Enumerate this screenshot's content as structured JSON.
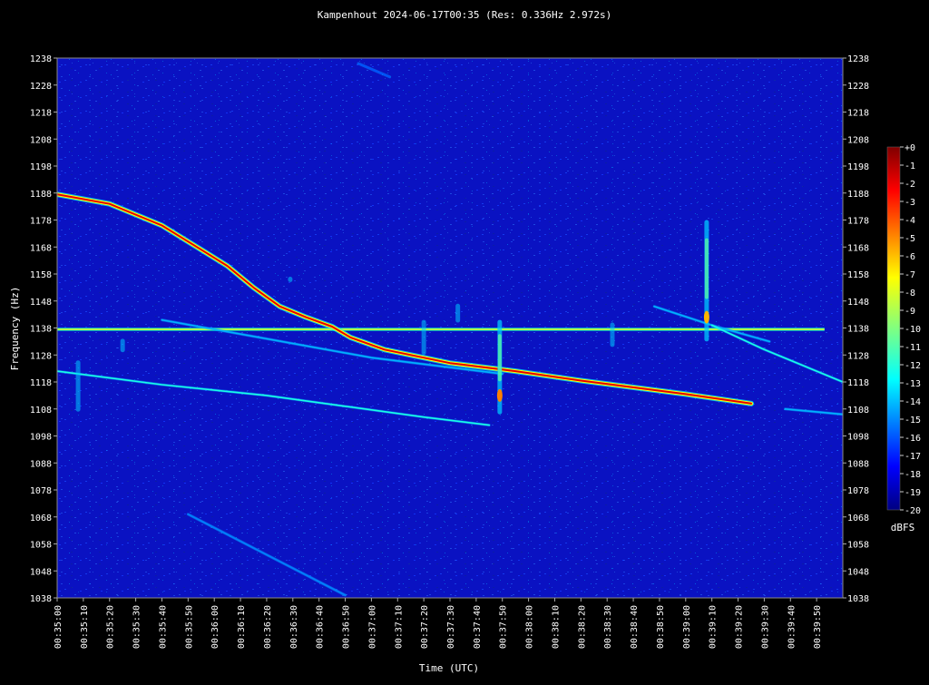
{
  "chart_data": {
    "type": "heatmap",
    "title": "Kampenhout 2024-06-17T00:35 (Res: 0.336Hz 2.972s)",
    "xlabel": "Time (UTC)",
    "ylabel": "Frequency (Hz)",
    "x_range_seconds_after_0035": [
      0,
      300
    ],
    "ylim": [
      1038,
      1238
    ],
    "x_ticks": [
      "00:35:00",
      "00:35:10",
      "00:35:20",
      "00:35:30",
      "00:35:40",
      "00:35:50",
      "00:36:00",
      "00:36:10",
      "00:36:20",
      "00:36:30",
      "00:36:40",
      "00:36:50",
      "00:37:00",
      "00:37:10",
      "00:37:20",
      "00:37:30",
      "00:37:40",
      "00:37:50",
      "00:38:00",
      "00:38:10",
      "00:38:20",
      "00:38:30",
      "00:38:40",
      "00:38:50",
      "00:39:00",
      "00:39:10",
      "00:39:20",
      "00:39:30",
      "00:39:40",
      "00:39:50"
    ],
    "y_ticks": [
      1038,
      1048,
      1058,
      1068,
      1078,
      1088,
      1098,
      1108,
      1118,
      1128,
      1138,
      1148,
      1158,
      1168,
      1178,
      1188,
      1198,
      1208,
      1218,
      1228,
      1238
    ],
    "colorbar": {
      "label": "dBFS",
      "min": -20,
      "max": 0,
      "ticks": [
        "+0",
        "-1",
        "-2",
        "-3",
        "-4",
        "-5",
        "-6",
        "-7",
        "-8",
        "-9",
        "-10",
        "-11",
        "-12",
        "-13",
        "-14",
        "-15",
        "-16",
        "-17",
        "-18",
        "-19",
        "-20"
      ]
    },
    "background_level_dbfs": -19,
    "carrier": {
      "freq_hz": 1137.5,
      "t_start_s": 0,
      "t_end_s": 293,
      "level_dbfs": -9
    },
    "traces": [
      {
        "level_dbfs": -2,
        "points": [
          [
            0,
            1187.5
          ],
          [
            20,
            1184
          ],
          [
            40,
            1176
          ],
          [
            55,
            1167
          ],
          [
            65,
            1161
          ],
          [
            75,
            1153
          ],
          [
            85,
            1146
          ],
          [
            95,
            1142
          ],
          [
            105,
            1138.5
          ],
          [
            112,
            1134.5
          ],
          [
            125,
            1130
          ],
          [
            150,
            1125
          ],
          [
            175,
            1122
          ],
          [
            200,
            1118.5
          ],
          [
            240,
            1113.5
          ],
          [
            265,
            1110
          ]
        ]
      },
      {
        "level_dbfs": -12,
        "points": [
          [
            0,
            1122
          ],
          [
            40,
            1117
          ],
          [
            80,
            1113
          ],
          [
            110,
            1109
          ],
          [
            140,
            1105
          ],
          [
            165,
            1102
          ]
        ]
      },
      {
        "level_dbfs": -14,
        "points": [
          [
            40,
            1141
          ],
          [
            80,
            1134
          ],
          [
            120,
            1127
          ],
          [
            170,
            1121
          ]
        ]
      },
      {
        "level_dbfs": -14,
        "points": [
          [
            228,
            1146
          ],
          [
            250,
            1139
          ],
          [
            272,
            1133
          ]
        ]
      },
      {
        "level_dbfs": -12,
        "points": [
          [
            250,
            1139
          ],
          [
            270,
            1130
          ],
          [
            300,
            1118
          ]
        ]
      },
      {
        "level_dbfs": -14,
        "points": [
          [
            278,
            1108
          ],
          [
            300,
            1106
          ]
        ]
      },
      {
        "level_dbfs": -15,
        "points": [
          [
            50,
            1069
          ],
          [
            80,
            1054
          ],
          [
            110,
            1039
          ]
        ]
      },
      {
        "level_dbfs": -16,
        "points": [
          [
            115,
            1236
          ],
          [
            127,
            1231
          ]
        ]
      }
    ],
    "meteor_streaks": [
      {
        "t_s": 169,
        "f_low_hz": 1106,
        "f_high_hz": 1141,
        "level_dbfs": -5
      },
      {
        "t_s": 248,
        "f_low_hz": 1133,
        "f_high_hz": 1178,
        "level_dbfs": -6
      },
      {
        "t_s": 140,
        "f_low_hz": 1128,
        "f_high_hz": 1141,
        "level_dbfs": -14
      },
      {
        "t_s": 153,
        "f_low_hz": 1140,
        "f_high_hz": 1147,
        "level_dbfs": -14
      },
      {
        "t_s": 212,
        "f_low_hz": 1131,
        "f_high_hz": 1140,
        "level_dbfs": -15
      },
      {
        "t_s": 8,
        "f_low_hz": 1107,
        "f_high_hz": 1126,
        "level_dbfs": -15
      },
      {
        "t_s": 25,
        "f_low_hz": 1129,
        "f_high_hz": 1134,
        "level_dbfs": -15
      },
      {
        "t_s": 89,
        "f_low_hz": 1155,
        "f_high_hz": 1157,
        "level_dbfs": -15
      }
    ]
  }
}
